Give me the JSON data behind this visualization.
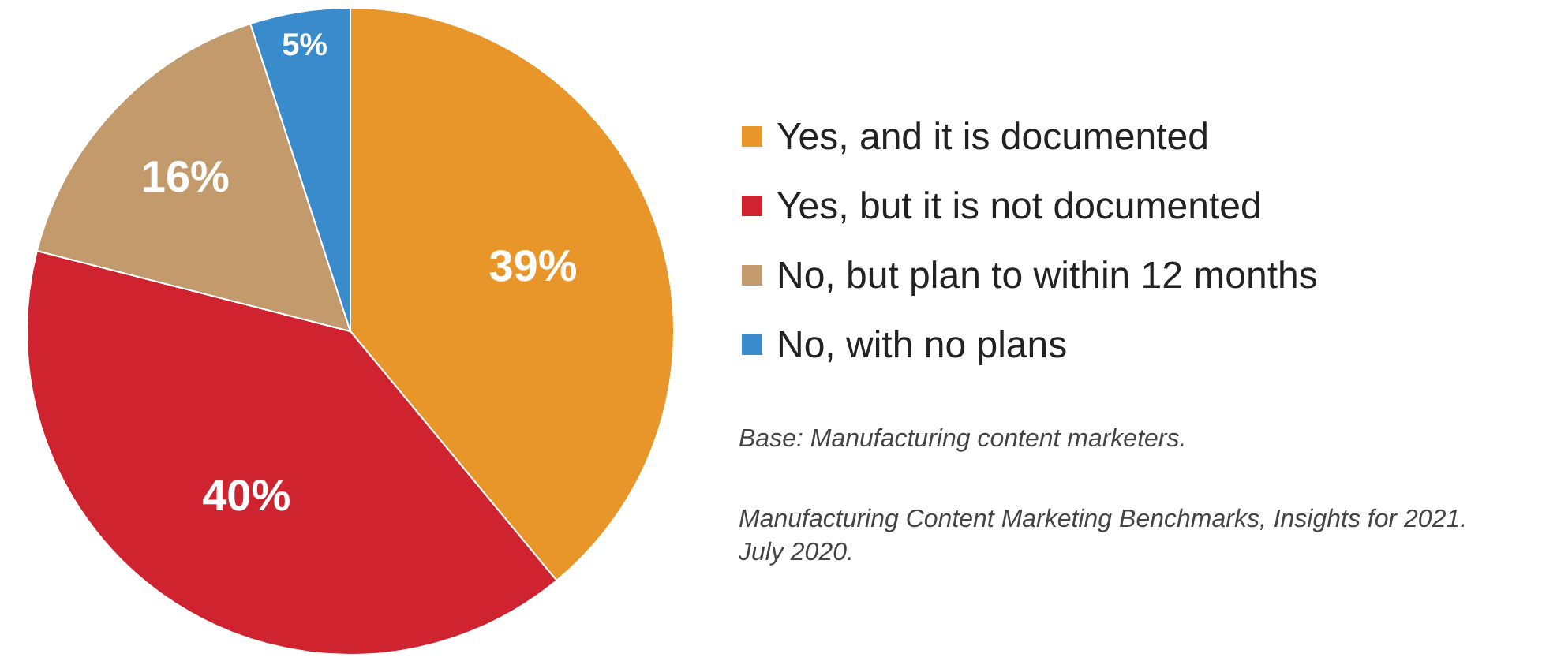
{
  "chart_data": {
    "type": "pie",
    "categories": [
      "Yes, and it is documented",
      "Yes, but it is not documented",
      "No, but plan to within 12 months",
      "No, with no plans"
    ],
    "values": [
      39,
      40,
      16,
      5
    ],
    "colors": [
      "#e8962a",
      "#cf232f",
      "#c39a6b",
      "#3a8bcb"
    ],
    "value_labels": [
      "39%",
      "40%",
      "16%",
      "5%"
    ],
    "legend": "right",
    "annotations": [
      "Base: Manufacturing content marketers.",
      "Manufacturing Content Marketing Benchmarks, Insights for 2021. July 2020."
    ]
  }
}
